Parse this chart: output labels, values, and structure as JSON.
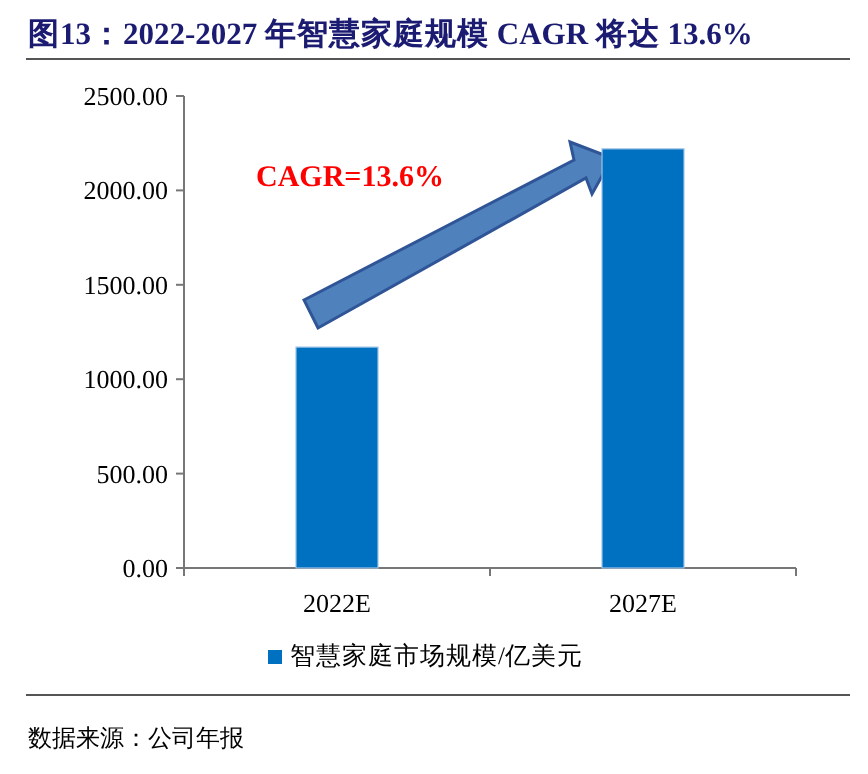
{
  "chart_data": {
    "type": "bar",
    "title": "图13：2022-2027 年智慧家庭规模 CAGR 将达 13.6%",
    "categories": [
      "2022E",
      "2027E"
    ],
    "series": [
      {
        "name": "智慧家庭市场规模/亿美元",
        "color": "#0070c0",
        "values": [
          1170,
          2220
        ]
      }
    ],
    "ylim": [
      0,
      2500
    ],
    "yticks": [
      {
        "value": 0,
        "label": "0.00"
      },
      {
        "value": 500,
        "label": "500.00"
      },
      {
        "value": 1000,
        "label": "1000.00"
      },
      {
        "value": 1500,
        "label": "1500.00"
      },
      {
        "value": 2000,
        "label": "2000.00"
      },
      {
        "value": 2500,
        "label": "2500.00"
      }
    ],
    "legend": "bottom",
    "annotations": [
      "CAGR=13.6%",
      "数据来源：公司年报"
    ]
  }
}
